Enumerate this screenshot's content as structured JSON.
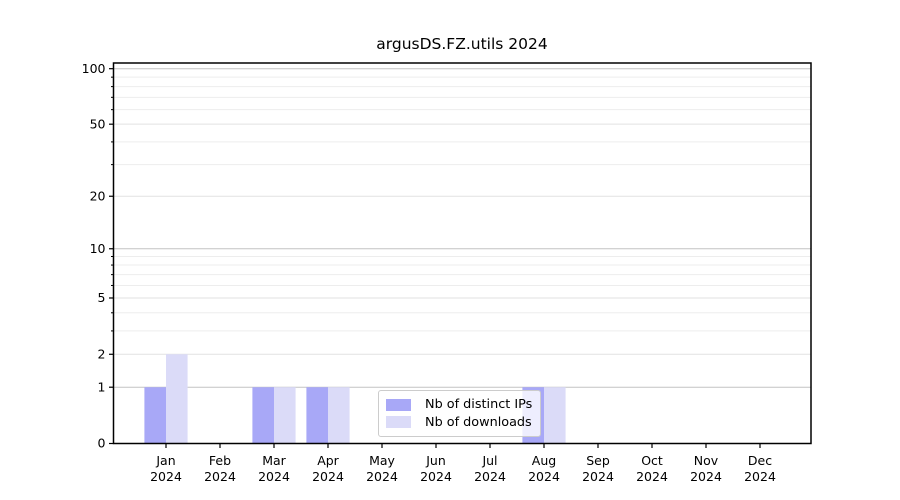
{
  "chart_data": {
    "type": "bar",
    "title": "argusDS.FZ.utils 2024",
    "categories": [
      "Jan",
      "Feb",
      "Mar",
      "Apr",
      "May",
      "Jun",
      "Jul",
      "Aug",
      "Sep",
      "Oct",
      "Nov",
      "Dec"
    ],
    "x_tick_second_line": "2024",
    "series": [
      {
        "name": "Nb of distinct IPs",
        "color": "#a8a8f7",
        "values": [
          1,
          0,
          1,
          1,
          0,
          0,
          0,
          1,
          0,
          0,
          0,
          0
        ]
      },
      {
        "name": "Nb of downloads",
        "color": "#dbdbf8",
        "values": [
          2,
          0,
          1,
          1,
          0,
          0,
          0,
          1,
          0,
          0,
          0,
          0
        ]
      }
    ],
    "y_axis": {
      "scale": "log1p",
      "tick_values": [
        0,
        1,
        2,
        5,
        10,
        20,
        50,
        100
      ],
      "tick_labels": [
        "0",
        "1",
        "2",
        "5",
        "10",
        "20",
        "50",
        "100"
      ],
      "minor_tick_values": [
        3,
        4,
        6,
        7,
        8,
        9,
        30,
        40,
        60,
        70,
        80,
        90
      ],
      "decade_values": [
        1,
        10,
        100
      ],
      "ylim": [
        0,
        108
      ]
    },
    "grid": "on",
    "legend_position": "lower-center"
  },
  "colors": {
    "bar_distinct_ips": "#a8a8f7",
    "bar_downloads": "#dbdbf8",
    "grid_decade": "#c4c4c4",
    "grid_labeled": "#e2e2e2",
    "grid_minor": "#ededed",
    "spine": "#000000",
    "tick_text": "#000000",
    "background": "#ffffff"
  }
}
